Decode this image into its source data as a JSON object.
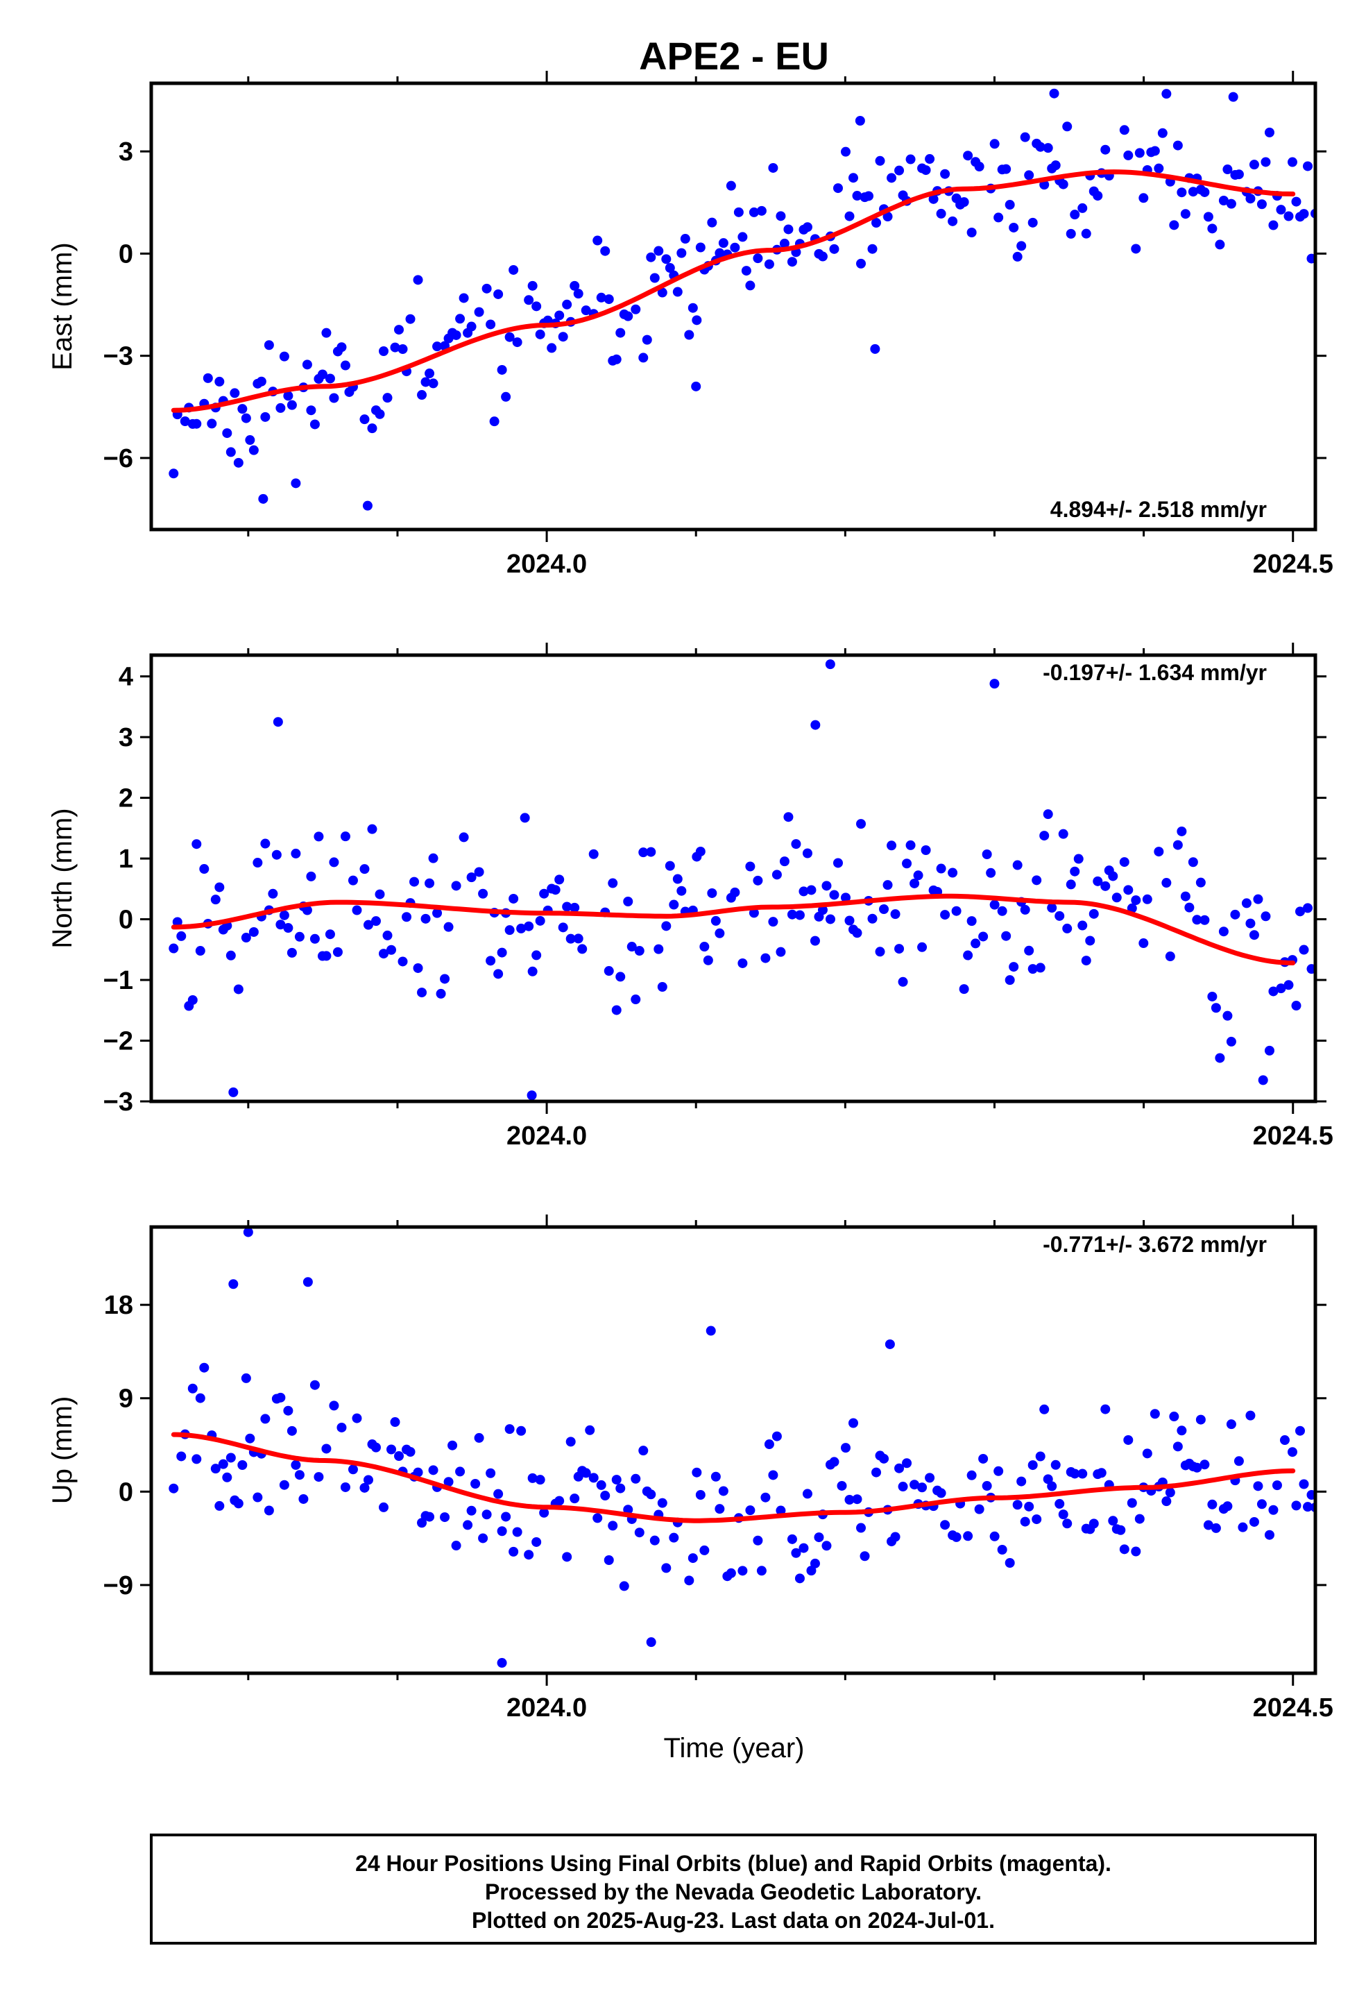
{
  "title": "APE2 - EU",
  "x_axis_label": "Time (year)",
  "footer_lines": [
    "24 Hour Positions Using Final Orbits (blue) and Rapid Orbits (magenta).",
    "Processed by the Nevada Geodetic Laboratory.",
    "Plotted on 2025-Aug-23. Last data on 2024-Jul-01."
  ],
  "colors": {
    "final_orbits": "#0000ff",
    "fit_line": "#ff0000",
    "frame": "#000000"
  },
  "chart_data": [
    {
      "type": "scatter",
      "ylabel": "East (mm)",
      "rate_text": "4.894+/- 2.518 mm/yr",
      "rate_position": "bottom-right",
      "xlim": [
        2023.735,
        2024.515
      ],
      "ylim": [
        -8.1,
        5.0
      ],
      "xticks": [
        2024.0,
        2024.5
      ],
      "xticklabels": [
        "2024.0",
        "2024.5"
      ],
      "yticks": [
        -6,
        -3,
        0,
        3
      ],
      "yticklabels": [
        "−6",
        "−3",
        "0",
        "3"
      ],
      "seed": 11,
      "trend": [
        [
          2023.75,
          -4.6
        ],
        [
          2023.85,
          -3.9
        ],
        [
          2024.0,
          -2.1
        ],
        [
          2024.15,
          0.1
        ],
        [
          2024.28,
          1.9
        ],
        [
          2024.38,
          2.4
        ],
        [
          2024.5,
          1.75
        ]
      ],
      "noise": 1.2,
      "outliers": [
        [
          2023.81,
          -7.2
        ],
        [
          2023.88,
          -7.4
        ],
        [
          2024.1,
          -3.9
        ],
        [
          2024.22,
          -2.8
        ],
        [
          2024.21,
          3.9
        ],
        [
          2024.34,
          4.7
        ],
        [
          2024.46,
          4.6
        ]
      ]
    },
    {
      "type": "scatter",
      "ylabel": "North (mm)",
      "rate_text": "-0.197+/- 1.634 mm/yr",
      "rate_position": "top-right",
      "xlim": [
        2023.735,
        2024.515
      ],
      "ylim": [
        -3.0,
        4.35
      ],
      "xticks": [
        2024.0,
        2024.5
      ],
      "xticklabels": [
        "2024.0",
        "2024.5"
      ],
      "yticks": [
        -3,
        -2,
        -1,
        0,
        1,
        2,
        3,
        4
      ],
      "yticklabels": [
        "−3",
        "−2",
        "−1",
        "0",
        "1",
        "2",
        "3",
        "4"
      ],
      "seed": 23,
      "trend": [
        [
          2023.75,
          -0.13
        ],
        [
          2023.86,
          0.28
        ],
        [
          2024.0,
          0.1
        ],
        [
          2024.08,
          0.05
        ],
        [
          2024.15,
          0.2
        ],
        [
          2024.27,
          0.38
        ],
        [
          2024.35,
          0.28
        ],
        [
          2024.5,
          -0.72
        ]
      ],
      "noise": 0.95,
      "outliers": [
        [
          2023.79,
          -2.85
        ],
        [
          2023.82,
          3.25
        ],
        [
          2024.19,
          4.2
        ],
        [
          2024.18,
          3.2
        ],
        [
          2024.3,
          3.88
        ],
        [
          2023.99,
          -2.9
        ],
        [
          2024.48,
          -2.65
        ]
      ]
    },
    {
      "type": "scatter",
      "ylabel": "Up (mm)",
      "rate_text": "-0.771+/- 3.672 mm/yr",
      "rate_position": "top-right",
      "xlim": [
        2023.735,
        2024.515
      ],
      "ylim": [
        -17.5,
        25.5
      ],
      "xticks": [
        2024.0,
        2024.5
      ],
      "xticklabels": [
        "2024.0",
        "2024.5"
      ],
      "yticks": [
        -9,
        0,
        9,
        18
      ],
      "yticklabels": [
        "−9",
        "0",
        "9",
        "18"
      ],
      "seed": 37,
      "trend": [
        [
          2023.75,
          5.5
        ],
        [
          2023.85,
          3.0
        ],
        [
          2024.0,
          -1.5
        ],
        [
          2024.1,
          -2.8
        ],
        [
          2024.2,
          -2.0
        ],
        [
          2024.3,
          -0.6
        ],
        [
          2024.4,
          0.4
        ],
        [
          2024.5,
          2.0
        ]
      ],
      "noise": 4.2,
      "outliers": [
        [
          2023.8,
          25.0
        ],
        [
          2023.79,
          20.0
        ],
        [
          2023.84,
          20.2
        ],
        [
          2023.97,
          -16.5
        ],
        [
          2024.07,
          -14.5
        ],
        [
          2024.23,
          14.2
        ],
        [
          2024.11,
          15.5
        ]
      ]
    }
  ]
}
